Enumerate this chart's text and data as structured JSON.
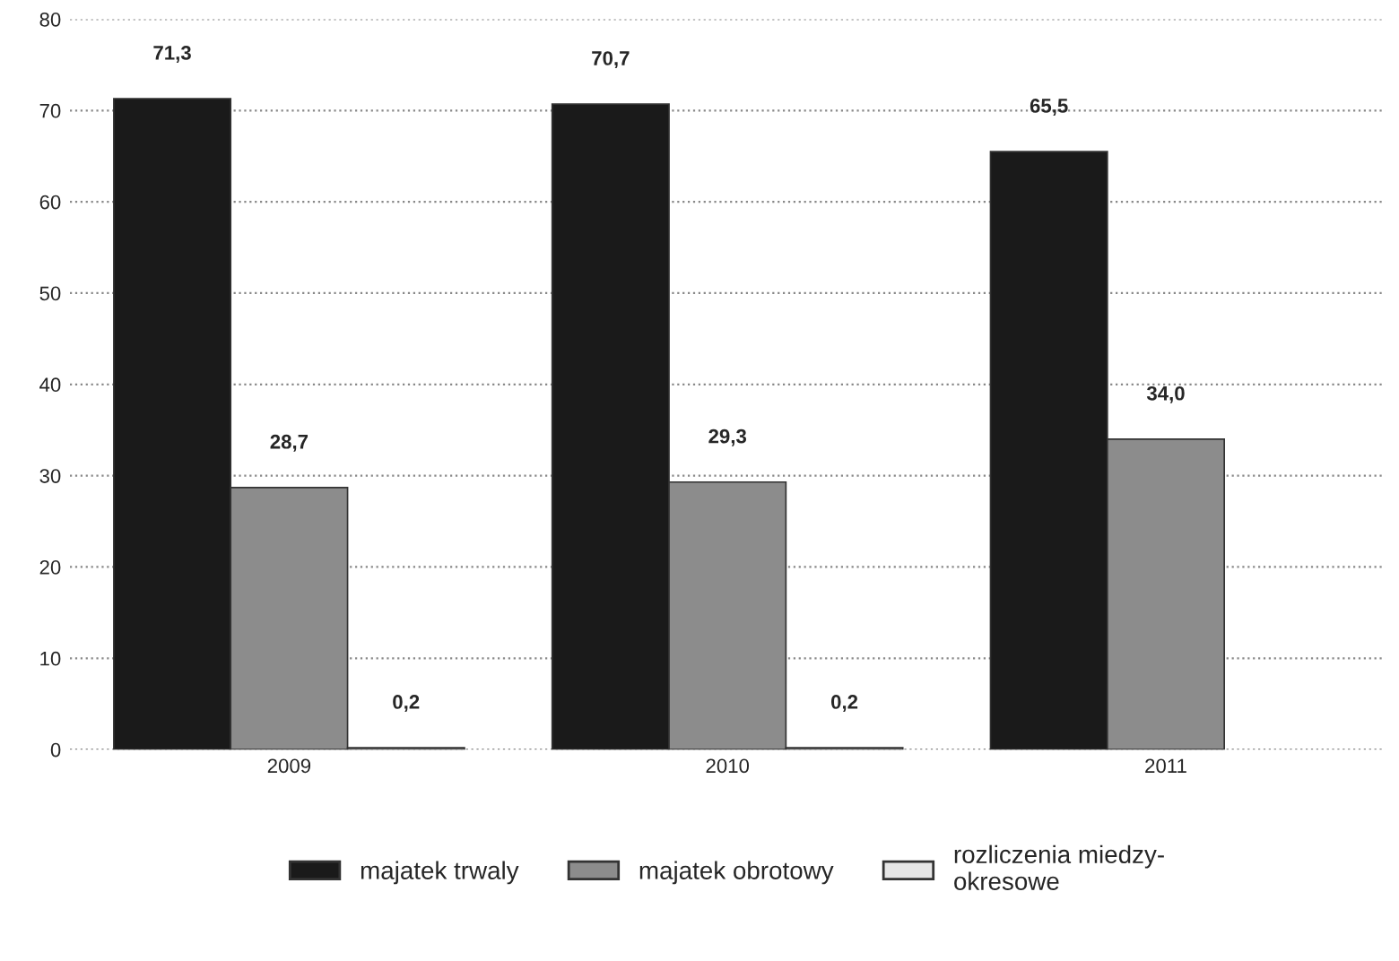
{
  "chart_data": {
    "type": "bar",
    "categories": [
      "2009",
      "2010",
      "2011"
    ],
    "series": [
      {
        "name": "majatek trwaly",
        "color": "#1a1a1a",
        "values": [
          71.3,
          70.7,
          65.5
        ],
        "value_labels": [
          "71,3",
          "70,7",
          "65,5"
        ]
      },
      {
        "name": "majatek obrotowy",
        "color": "#8c8c8c",
        "values": [
          28.7,
          29.3,
          34.0
        ],
        "value_labels": [
          "28,7",
          "29,3",
          "34,0"
        ]
      },
      {
        "name": "rozliczenia miedzy-\nokresowe",
        "color": "#e6e6e6",
        "values": [
          0.2,
          0.2,
          null
        ],
        "value_labels": [
          "0,2",
          "0,2",
          null
        ]
      }
    ],
    "ylim": [
      0,
      80
    ],
    "yticks": [
      0,
      10,
      20,
      30,
      40,
      50,
      60,
      70,
      80
    ],
    "grid": "y",
    "legend": "bottom"
  }
}
